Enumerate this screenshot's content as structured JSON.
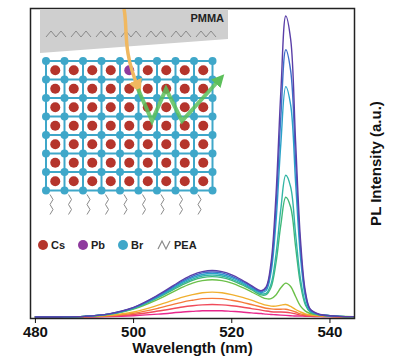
{
  "chart_data": {
    "type": "line",
    "x_label": "Wavelength (nm)",
    "y_label": "PL Intensity (a.u.)",
    "xlim": [
      479,
      545
    ],
    "xticks": [
      480,
      500,
      520,
      540
    ],
    "ylim": [
      0,
      100
    ],
    "yticks": [],
    "tick_labels": "x",
    "annotations": [
      "PMMA"
    ],
    "inset_legend": [
      {
        "name": "Cs",
        "color": "#b5352c"
      },
      {
        "name": "Pb",
        "color": "#8e3a9e"
      },
      {
        "name": "Br",
        "color": "#3fa7c9"
      },
      {
        "name": "PEA",
        "color": "#8a8a8a"
      }
    ],
    "x": [
      480,
      485,
      490,
      495,
      500,
      505,
      510,
      512,
      514,
      516,
      518,
      520,
      522,
      524,
      526,
      527,
      528,
      529,
      530,
      531,
      532,
      533,
      534,
      535,
      536,
      538,
      540,
      542,
      545
    ],
    "series": [
      {
        "color": "#e8288c",
        "values": [
          0.5,
          0.5,
          0.5,
          0.6,
          0.9,
          1.4,
          2.1,
          2.3,
          2.5,
          2.5,
          2.5,
          2.3,
          2.1,
          1.8,
          1.6,
          1.4,
          1.3,
          1.2,
          1.1,
          1.0,
          0.9,
          0.8,
          0.8,
          0.7,
          0.7,
          0.6,
          0.6,
          0.5,
          0.5
        ]
      },
      {
        "color": "#f04a5a",
        "values": [
          0.5,
          0.5,
          0.6,
          0.8,
          1.3,
          2.4,
          3.7,
          4.1,
          4.4,
          4.5,
          4.4,
          4.1,
          3.7,
          3.2,
          2.7,
          2.4,
          2.2,
          2.1,
          2.1,
          2.0,
          1.8,
          1.5,
          1.1,
          0.9,
          0.8,
          0.7,
          0.6,
          0.6,
          0.5
        ]
      },
      {
        "color": "#f57a3a",
        "values": [
          0.5,
          0.5,
          0.6,
          0.9,
          1.7,
          3.3,
          5.3,
          5.9,
          6.4,
          6.5,
          6.4,
          5.9,
          5.3,
          4.5,
          3.7,
          3.3,
          3.1,
          3.0,
          3.0,
          3.0,
          2.6,
          2.1,
          1.5,
          1.2,
          1.0,
          0.8,
          0.7,
          0.6,
          0.5
        ]
      },
      {
        "color": "#f0b030",
        "values": [
          0.5,
          0.5,
          0.6,
          1.0,
          2.1,
          4.3,
          6.9,
          7.7,
          8.3,
          8.5,
          8.3,
          7.7,
          6.9,
          5.9,
          4.8,
          4.3,
          4.0,
          4.0,
          4.3,
          4.5,
          3.9,
          2.9,
          2.1,
          1.5,
          1.2,
          0.9,
          0.7,
          0.6,
          0.5
        ]
      },
      {
        "color": "#6cc04a",
        "values": [
          0.5,
          0.5,
          0.7,
          1.3,
          3.0,
          6.2,
          10.1,
          11.4,
          12.2,
          12.5,
          12.2,
          11.4,
          10.1,
          8.6,
          7.0,
          6.4,
          6.4,
          7.6,
          9.9,
          11.4,
          10.3,
          7.1,
          4.0,
          2.4,
          1.6,
          1.1,
          0.8,
          0.7,
          0.6
        ]
      },
      {
        "color": "#3fb87a",
        "values": [
          0.5,
          0.5,
          0.7,
          1.4,
          3.2,
          6.7,
          10.9,
          12.3,
          13.2,
          13.5,
          13.2,
          12.3,
          10.9,
          9.3,
          7.6,
          7.7,
          10.1,
          17.9,
          30.3,
          39.1,
          35.9,
          23.2,
          11.0,
          4.4,
          2.1,
          1.2,
          0.9,
          0.7,
          0.6
        ]
      },
      {
        "color": "#33b5a5",
        "values": [
          0.5,
          0.5,
          0.7,
          1.4,
          3.3,
          6.9,
          11.3,
          12.7,
          13.7,
          14.0,
          13.7,
          12.7,
          11.3,
          9.6,
          8.0,
          8.1,
          11.1,
          20.6,
          35.4,
          46.2,
          42.4,
          27.3,
          12.7,
          5.0,
          2.2,
          1.2,
          0.9,
          0.7,
          0.6
        ]
      },
      {
        "color": "#2ba3c8",
        "values": [
          0.5,
          0.5,
          0.7,
          1.4,
          3.4,
          7.1,
          11.7,
          13.2,
          14.2,
          14.5,
          14.2,
          13.2,
          11.7,
          9.9,
          8.4,
          9.0,
          14.9,
          31.0,
          56.5,
          74.8,
          68.8,
          43.9,
          19.8,
          7.0,
          2.6,
          1.2,
          0.9,
          0.7,
          0.6
        ]
      },
      {
        "color": "#3d6fc9",
        "values": [
          0.5,
          0.5,
          0.7,
          1.5,
          3.5,
          7.4,
          12.1,
          13.6,
          14.7,
          15.0,
          14.7,
          13.6,
          12.1,
          10.3,
          8.6,
          9.7,
          16.5,
          35.5,
          65.2,
          86.7,
          79.9,
          50.7,
          22.7,
          7.9,
          2.8,
          1.2,
          0.9,
          0.7,
          0.6
        ]
      },
      {
        "color": "#5a3fa8",
        "values": [
          0.5,
          0.5,
          0.7,
          1.5,
          3.6,
          7.6,
          12.5,
          14.1,
          15.1,
          15.5,
          15.1,
          14.1,
          12.5,
          10.6,
          9.0,
          10.2,
          18.0,
          39.6,
          73.3,
          97.6,
          90.0,
          57.1,
          25.4,
          8.7,
          3.0,
          1.3,
          0.9,
          0.7,
          0.6
        ]
      }
    ]
  }
}
